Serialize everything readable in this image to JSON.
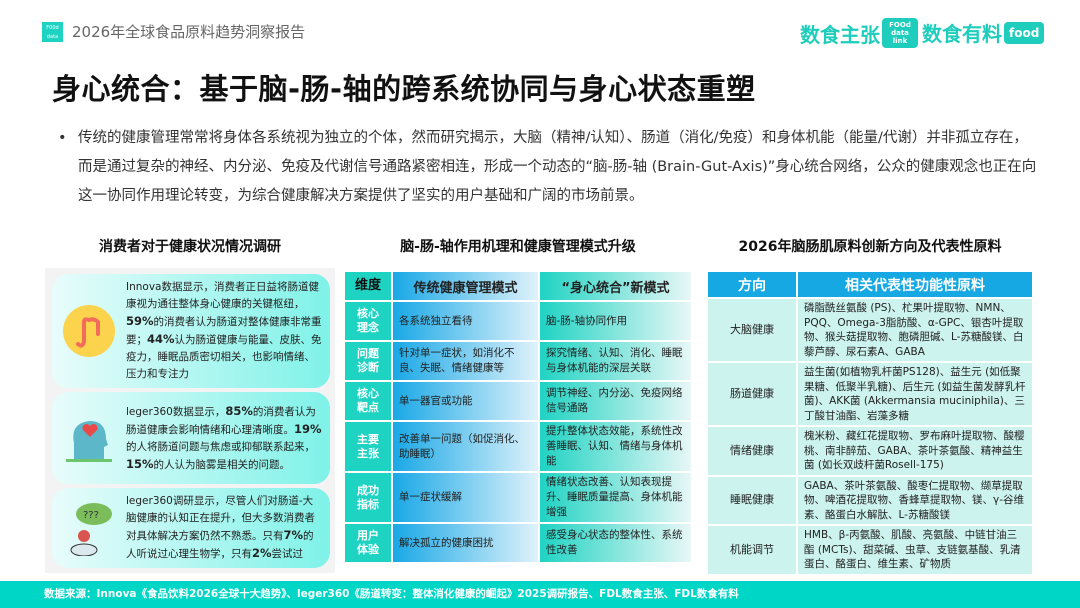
{
  "header": {
    "logo_text": "FOOd data link",
    "title": "2026年全球食品原料趋势洞察报告",
    "brand1": "数食主张",
    "brand1_tag": "FOOd data link",
    "brand2": "数食有料",
    "brand2_tag": "food"
  },
  "main_title": "身心统合：基于脑-肠-轴的跨系统协同与身心状态重塑",
  "intro": "传统的健康管理常常将身体各系统视为独立的个体，然而研究揭示，大脑（精神/认知）、肠道（消化/免疫）和身体机能（能量/代谢）并非孤立存在，而是通过复杂的神经、内分泌、免疫及代谢信号通路紧密相连，形成一个动态的“脑-肠-轴 (Brain-Gut-Axis)”身心统合网络，公众的健康观念也正在向这一协同作用理论转变，为综合健康解决方案提供了坚实的用户基础和广阔的市场前景。",
  "sections": {
    "left": "消费者对于健康状况情况调研",
    "middle": "脑-肠-轴作用机理和健康管理模式升级",
    "right": "2026年脑肠肌原料创新方向及代表性原料"
  },
  "cards": [
    {
      "icon": "intestine-icon",
      "parts": [
        [
          "Innova数据显示，消费者正日益将肠道健康视为通往整体身心健康的关键枢纽，",
          0
        ],
        [
          "59%",
          1
        ],
        [
          "的消费者认为肠道对整体健康非常重要；",
          0
        ],
        [
          "44%",
          1
        ],
        [
          "认为肠道健康与能量、皮肤、免疫力，睡眠品质密切相关，也影响情绪、压力和专注力",
          0
        ]
      ]
    },
    {
      "icon": "mind-heart-icon",
      "parts": [
        [
          "leger360数据显示，",
          0
        ],
        [
          "85%",
          1
        ],
        [
          "的消费者认为肠道健康会影响情绪和心理清晰度。",
          0
        ],
        [
          "19%",
          1
        ],
        [
          "的人将肠道问题与焦虑或抑郁联系起来，",
          0
        ],
        [
          "15%",
          1
        ],
        [
          "的人认为脑雾是相关的问题。",
          0
        ]
      ]
    },
    {
      "icon": "question-person-icon",
      "parts": [
        [
          "leger360调研显示，尽管人们对肠道-大脑健康的认知正在提升，但大多数消费者对具体解决方案仍然不熟悉。只有",
          0
        ],
        [
          "7%",
          1
        ],
        [
          "的人听说过心理生物学，只有",
          0
        ],
        [
          "2%",
          1
        ],
        [
          "尝试过",
          0
        ]
      ]
    }
  ],
  "mode_table": {
    "headers": [
      "维度",
      "传统健康管理模式",
      "“身心统合”新模式"
    ],
    "rows": [
      [
        "核心理念",
        "各系统独立看待",
        "脑-肠-轴协同作用"
      ],
      [
        "问题诊断",
        "针对单一症状，如消化不良、失眠、情绪健康等",
        "探究情绪、认知、消化、睡眠与身体机能的深层关联"
      ],
      [
        "核心靶点",
        "单一器官或功能",
        "调节神经、内分泌、免疫网络信号通路"
      ],
      [
        "主要主张",
        "改善单一问题（如促消化、助睡眠）",
        "提升整体状态效能，系统性改善睡眠、认知、情绪与身体机能"
      ],
      [
        "成功指标",
        "单一症状缓解",
        "情绪状态改善、认知表现提升、睡眠质量提高、身体机能增强"
      ],
      [
        "用户体验",
        "解决孤立的健康困扰",
        "感受身心状态的整体性、系统性改善"
      ]
    ]
  },
  "ingredient_table": {
    "headers": [
      "方向",
      "相关代表性功能性原料"
    ],
    "rows": [
      [
        "大脑健康",
        "磷脂酰丝氨酸 (PS)、杧果叶提取物、NMN、PQQ、Omega-3脂肪酸、α-GPC、银杏叶提取物、猴头菇提取物、胞磷胆碱、L-苏糖酸镁、白藜芦醇、尿石素A、GABA"
      ],
      [
        "肠道健康",
        "益生菌(如植物乳杆菌PS128)、益生元 (如低聚果糖、低聚半乳糖)、后生元 (如益生菌发酵乳杆菌)、AKK菌 (Akkermansia muciniphila)、三丁酸甘油酯、岩藻多糖"
      ],
      [
        "情绪健康",
        "槐米粉、藏红花提取物、罗布麻叶提取物、酸樱桃、南非醉茄、GABA、茶叶茶氨酸、精神益生菌 (如长双歧杆菌Rosell-175)"
      ],
      [
        "睡眠健康",
        "GABA、茶叶茶氨酸、酸枣仁提取物、缬草提取物、啤酒花提取物、香蜂草提取物、镁、γ-谷维素、酪蛋白水解肽、L-苏糖酸镁"
      ],
      [
        "机能调节",
        "HMB、β-丙氨酸、肌酸、亮氨酸、中链甘油三酯 (MCTs)、甜菜碱、虫草、支链氨基酸、乳清蛋白、酪蛋白、维生素、矿物质"
      ]
    ]
  },
  "footer": "数据来源：Innova《食品饮料2026全球十大趋势》、leger360《肠道转变：整体消化健康的崛起》2025调研报告、FDL数食主张、FDL数食有料",
  "colors": {
    "teal": "#00d6c6",
    "blue": "#16a8e3"
  }
}
